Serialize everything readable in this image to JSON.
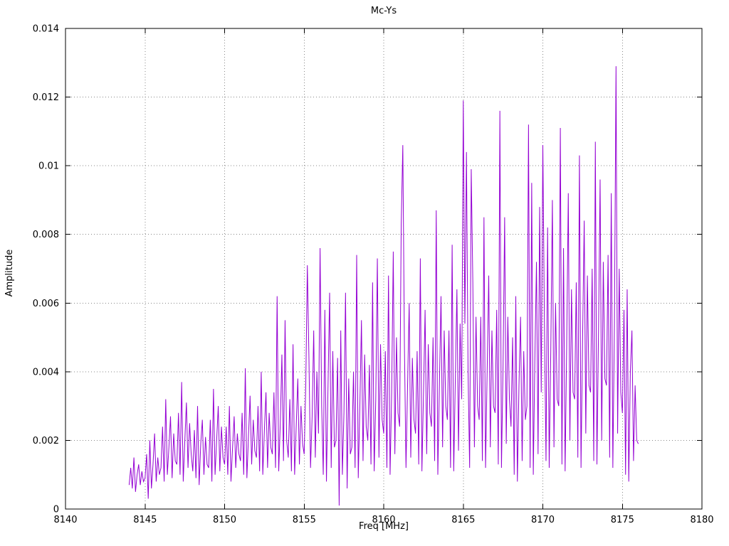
{
  "chart_data": {
    "type": "line",
    "title": "Mc-Ys",
    "xlabel": "Freq [MHz]",
    "ylabel": "Amplitude",
    "xlim": [
      8140,
      8180
    ],
    "ylim": [
      0,
      0.014
    ],
    "xticks": [
      8140,
      8145,
      8150,
      8155,
      8160,
      8165,
      8170,
      8175,
      8180
    ],
    "xtick_labels": [
      "8140",
      "8145",
      "8150",
      "8155",
      "8160",
      "8165",
      "8170",
      "8175",
      "8180"
    ],
    "yticks": [
      0,
      0.002,
      0.004,
      0.006,
      0.008,
      0.01,
      0.012,
      0.014
    ],
    "ytick_labels": [
      "0",
      "0.002",
      "0.004",
      "0.006",
      "0.008",
      "0.01",
      "0.012",
      "0.014"
    ],
    "grid": true,
    "grid_style": "dotted",
    "legend_position": "none",
    "line_color": "#9400d3",
    "background_color": "#ffffff",
    "series": [
      {
        "name": "Mc-Ys",
        "x_start": 8144.0,
        "x_step": 0.1,
        "values": [
          0.0007,
          0.0012,
          0.0006,
          0.0015,
          0.0005,
          0.001,
          0.0013,
          0.0007,
          0.0011,
          0.0008,
          0.0009,
          0.0016,
          0.0003,
          0.002,
          0.0006,
          0.0013,
          0.0022,
          0.0008,
          0.0015,
          0.001,
          0.0012,
          0.0024,
          0.0008,
          0.0032,
          0.001,
          0.0018,
          0.0027,
          0.0009,
          0.0022,
          0.0014,
          0.0013,
          0.0028,
          0.001,
          0.0037,
          0.0008,
          0.002,
          0.0031,
          0.0012,
          0.0025,
          0.0016,
          0.0011,
          0.0023,
          0.0009,
          0.003,
          0.0007,
          0.0019,
          0.0026,
          0.001,
          0.0021,
          0.0013,
          0.0012,
          0.0026,
          0.0008,
          0.0035,
          0.001,
          0.002,
          0.003,
          0.0011,
          0.0024,
          0.0015,
          0.0013,
          0.0024,
          0.001,
          0.003,
          0.0008,
          0.0018,
          0.0027,
          0.0012,
          0.0022,
          0.0016,
          0.0014,
          0.0028,
          0.001,
          0.0041,
          0.0009,
          0.0021,
          0.0033,
          0.0013,
          0.0026,
          0.0017,
          0.0015,
          0.003,
          0.0011,
          0.004,
          0.001,
          0.0023,
          0.0034,
          0.0012,
          0.0028,
          0.0018,
          0.0016,
          0.0034,
          0.0012,
          0.0062,
          0.0011,
          0.0025,
          0.0045,
          0.0014,
          0.0055,
          0.002,
          0.0015,
          0.0032,
          0.0011,
          0.0048,
          0.001,
          0.0024,
          0.0038,
          0.0013,
          0.003,
          0.0019,
          0.0016,
          0.0036,
          0.0071,
          0.0044,
          0.0012,
          0.0027,
          0.0052,
          0.0015,
          0.004,
          0.0022,
          0.0076,
          0.003,
          0.001,
          0.0058,
          0.0008,
          0.0036,
          0.0063,
          0.0012,
          0.0046,
          0.0018,
          0.002,
          0.0044,
          0.0001,
          0.0052,
          0.001,
          0.0028,
          0.0063,
          0.0006,
          0.0038,
          0.0016,
          0.0018,
          0.004,
          0.0012,
          0.0074,
          0.0009,
          0.003,
          0.0055,
          0.0014,
          0.0045,
          0.0024,
          0.002,
          0.0042,
          0.0013,
          0.0066,
          0.0011,
          0.0032,
          0.0073,
          0.0015,
          0.0048,
          0.0026,
          0.0022,
          0.0046,
          0.0012,
          0.0068,
          0.001,
          0.0034,
          0.0075,
          0.0016,
          0.005,
          0.0028,
          0.0024,
          0.0083,
          0.0106,
          0.0048,
          0.0012,
          0.0036,
          0.006,
          0.0015,
          0.0044,
          0.0026,
          0.0022,
          0.0046,
          0.0013,
          0.0073,
          0.0011,
          0.0034,
          0.0058,
          0.0016,
          0.0048,
          0.0028,
          0.0024,
          0.005,
          0.0014,
          0.0087,
          0.001,
          0.0036,
          0.0062,
          0.0018,
          0.0052,
          0.003,
          0.0026,
          0.0052,
          0.0012,
          0.0077,
          0.0011,
          0.0038,
          0.0064,
          0.0017,
          0.0054,
          0.0032,
          0.0119,
          0.0054,
          0.0104,
          0.004,
          0.0012,
          0.0099,
          0.0066,
          0.0018,
          0.0056,
          0.003,
          0.0026,
          0.0056,
          0.0014,
          0.0085,
          0.0012,
          0.004,
          0.0068,
          0.0018,
          0.0052,
          0.003,
          0.0028,
          0.0058,
          0.0013,
          0.0116,
          0.0012,
          0.0042,
          0.0085,
          0.0019,
          0.0056,
          0.0032,
          0.0024,
          0.005,
          0.001,
          0.0062,
          0.0008,
          0.0036,
          0.0056,
          0.0014,
          0.0046,
          0.0026,
          0.003,
          0.0112,
          0.0012,
          0.0095,
          0.001,
          0.0044,
          0.0072,
          0.0016,
          0.0088,
          0.0034,
          0.0106,
          0.0054,
          0.0014,
          0.0082,
          0.0012,
          0.0046,
          0.009,
          0.0018,
          0.006,
          0.0032,
          0.003,
          0.0111,
          0.0013,
          0.0076,
          0.0011,
          0.0048,
          0.0092,
          0.002,
          0.0064,
          0.0034,
          0.0032,
          0.0066,
          0.0015,
          0.0103,
          0.0012,
          0.005,
          0.0084,
          0.0022,
          0.0068,
          0.0036,
          0.0034,
          0.007,
          0.0014,
          0.0107,
          0.0013,
          0.0052,
          0.0096,
          0.002,
          0.0072,
          0.0038,
          0.0036,
          0.0074,
          0.0015,
          0.0092,
          0.0012,
          0.0054,
          0.0129,
          0.0022,
          0.007,
          0.0034,
          0.0028,
          0.0058,
          0.001,
          0.0064,
          0.0008,
          0.004,
          0.0052,
          0.0014,
          0.0036,
          0.002,
          0.0019
        ]
      }
    ]
  }
}
